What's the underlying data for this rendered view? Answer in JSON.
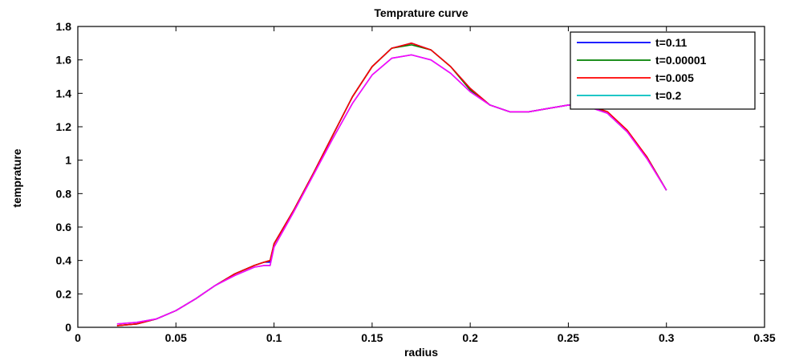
{
  "chart_data": {
    "type": "line",
    "title": "Temprature curve",
    "xlabel": "radius",
    "ylabel": "temprature",
    "xlim": [
      0,
      0.35
    ],
    "ylim": [
      0,
      1.8
    ],
    "xticks": [
      0,
      0.05,
      0.1,
      0.15,
      0.2,
      0.25,
      0.3,
      0.35
    ],
    "xtick_labels": [
      "0",
      "0.05",
      "0.1",
      "0.15",
      "0.2",
      "0.25",
      "0.3",
      "0.35"
    ],
    "yticks": [
      0,
      0.2,
      0.4,
      0.6,
      0.8,
      1,
      1.2,
      1.4,
      1.6,
      1.8
    ],
    "ytick_labels": [
      "0",
      "0.2",
      "0.4",
      "0.6",
      "0.8",
      "1",
      "1.2",
      "1.4",
      "1.6",
      "1.8"
    ],
    "grid": false,
    "legend_position": "top-right",
    "x": [
      0.02,
      0.03,
      0.04,
      0.05,
      0.06,
      0.07,
      0.08,
      0.09,
      0.095,
      0.098,
      0.1,
      0.11,
      0.12,
      0.13,
      0.14,
      0.15,
      0.16,
      0.17,
      0.18,
      0.19,
      0.2,
      0.21,
      0.22,
      0.23,
      0.24,
      0.25,
      0.26,
      0.27,
      0.28,
      0.29,
      0.3
    ],
    "series": [
      {
        "name": "t=0.11",
        "color": "#0000ff",
        "values": [
          0.01,
          0.02,
          0.05,
          0.1,
          0.17,
          0.25,
          0.32,
          0.37,
          0.39,
          0.39,
          0.5,
          0.7,
          0.92,
          1.15,
          1.38,
          1.56,
          1.67,
          1.7,
          1.66,
          1.56,
          1.43,
          1.33,
          1.29,
          1.29,
          1.31,
          1.33,
          1.33,
          1.28,
          1.17,
          1.02,
          0.82
        ]
      },
      {
        "name": "t=0.00001",
        "color": "#008000",
        "values": [
          0.01,
          0.02,
          0.05,
          0.1,
          0.17,
          0.25,
          0.32,
          0.37,
          0.39,
          0.4,
          0.5,
          0.7,
          0.92,
          1.15,
          1.38,
          1.56,
          1.67,
          1.69,
          1.66,
          1.56,
          1.42,
          1.33,
          1.29,
          1.29,
          1.31,
          1.33,
          1.33,
          1.28,
          1.17,
          1.02,
          0.82
        ]
      },
      {
        "name": "t=0.005",
        "color": "#ff0000",
        "values": [
          0.01,
          0.02,
          0.05,
          0.1,
          0.17,
          0.25,
          0.32,
          0.37,
          0.39,
          0.4,
          0.5,
          0.7,
          0.92,
          1.15,
          1.38,
          1.56,
          1.67,
          1.7,
          1.66,
          1.56,
          1.43,
          1.33,
          1.29,
          1.29,
          1.31,
          1.33,
          1.33,
          1.29,
          1.18,
          1.02,
          0.82
        ]
      },
      {
        "name": "t=0.2",
        "color": "#00bfbf",
        "values": [
          0.02,
          0.03,
          0.05,
          0.1,
          0.17,
          0.25,
          0.31,
          0.36,
          0.37,
          0.37,
          0.48,
          0.69,
          0.91,
          1.13,
          1.34,
          1.51,
          1.61,
          1.63,
          1.6,
          1.52,
          1.41,
          1.33,
          1.29,
          1.29,
          1.31,
          1.33,
          1.32,
          1.28,
          1.17,
          1.01,
          0.82
        ]
      },
      {
        "name": "",
        "color": "#ff00ff",
        "values": [
          0.02,
          0.03,
          0.05,
          0.1,
          0.17,
          0.25,
          0.31,
          0.36,
          0.37,
          0.37,
          0.48,
          0.69,
          0.91,
          1.13,
          1.34,
          1.51,
          1.61,
          1.63,
          1.6,
          1.52,
          1.41,
          1.33,
          1.29,
          1.29,
          1.31,
          1.33,
          1.32,
          1.28,
          1.17,
          1.01,
          0.82
        ]
      }
    ]
  }
}
